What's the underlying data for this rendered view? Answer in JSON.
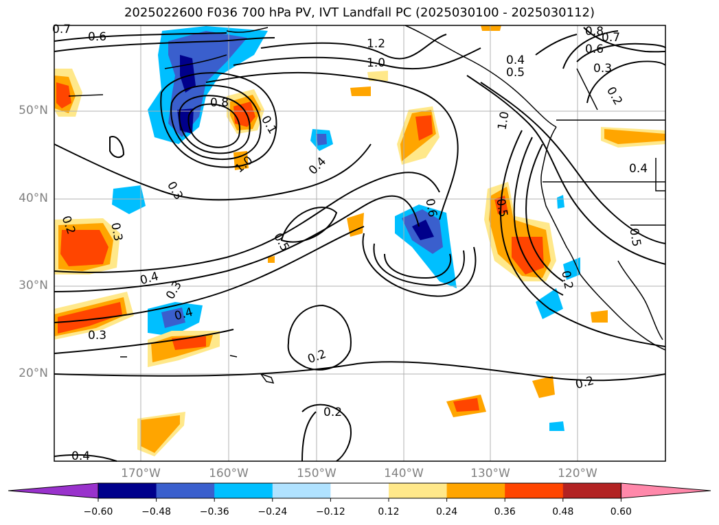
{
  "title": "2025022600 F036 700 hPa PV, IVT Landfall PC (2025030100 - 2025030112)",
  "lat_labels": [
    "50°N",
    "40°N",
    "30°N",
    "20°N"
  ],
  "lon_labels": [
    "170°W",
    "160°W",
    "150°W",
    "140°W",
    "130°W",
    "120°W"
  ],
  "contour_labels": [
    "0.7",
    "0.6",
    "1.2",
    "1.0",
    "0.8",
    "0.7",
    "0.6",
    "0.4",
    "0.5",
    "0.3",
    "0.2",
    "0.8",
    "0.1",
    "1.0",
    "0.4",
    "0.3",
    "1.0",
    "0.4",
    "0.2",
    "0.3",
    "0.6",
    "0.5",
    "0.5",
    "0.4",
    "0.5",
    "0.3",
    "0.2",
    "0.4",
    "0.3",
    "0.2",
    "0.2",
    "0.2",
    "0.4"
  ],
  "colorbar": {
    "ticks": [
      "−0.60",
      "−0.48",
      "−0.36",
      "−0.24",
      "−0.12",
      "0.12",
      "0.24",
      "0.36",
      "0.48",
      "0.60"
    ],
    "colors": [
      "#9932cc",
      "#00008b",
      "#3a5fcd",
      "#00bfff",
      "#b0e2ff",
      "#ffffff",
      "#ffe88a",
      "#ffa500",
      "#ff4500",
      "#b22222",
      "#ff88aa"
    ]
  },
  "colors": {
    "grid": "#b0b0b0",
    "label_gray": "#808080",
    "contour": "#000000"
  }
}
